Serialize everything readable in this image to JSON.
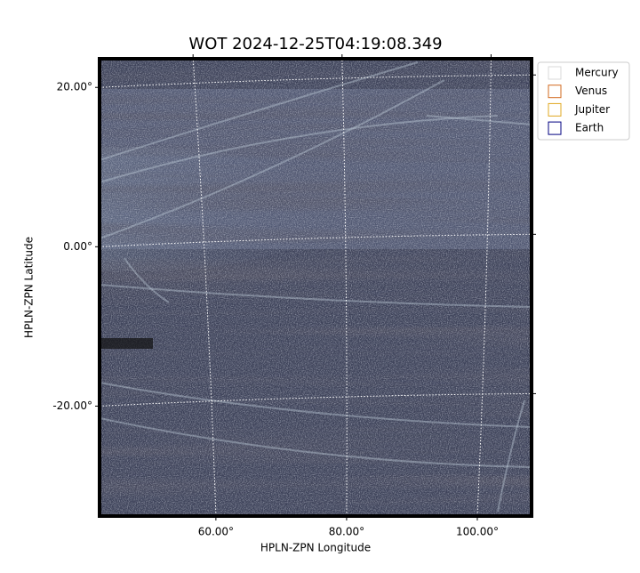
{
  "chart_data": {
    "type": "image",
    "title": "WOT 2024-12-25T04:19:08.349",
    "x_label": "HPLN-ZPN Longitude",
    "y_label": "HPLN-ZPN Latitude",
    "xlim": [
      42.2,
      108.3
    ],
    "ylim": [
      -33.8,
      23.6
    ],
    "xticks": [
      {
        "value": 60,
        "label": "60.00°"
      },
      {
        "value": 80,
        "label": "80.00°"
      },
      {
        "value": 100,
        "label": "100.00°"
      }
    ],
    "yticks": [
      {
        "value": -20,
        "label": "-20.00°"
      },
      {
        "value": 0,
        "label": "0.00°"
      },
      {
        "value": 20,
        "label": "20.00°"
      }
    ],
    "grid": true,
    "legend_loc": "upper right",
    "legend": [
      {
        "name": "Mercury",
        "color": "#d9d9d9"
      },
      {
        "name": "Venus",
        "color": "#d2691e"
      },
      {
        "name": "Jupiter",
        "color": "#e0a820"
      },
      {
        "name": "Earth",
        "color": "#000080"
      }
    ]
  }
}
